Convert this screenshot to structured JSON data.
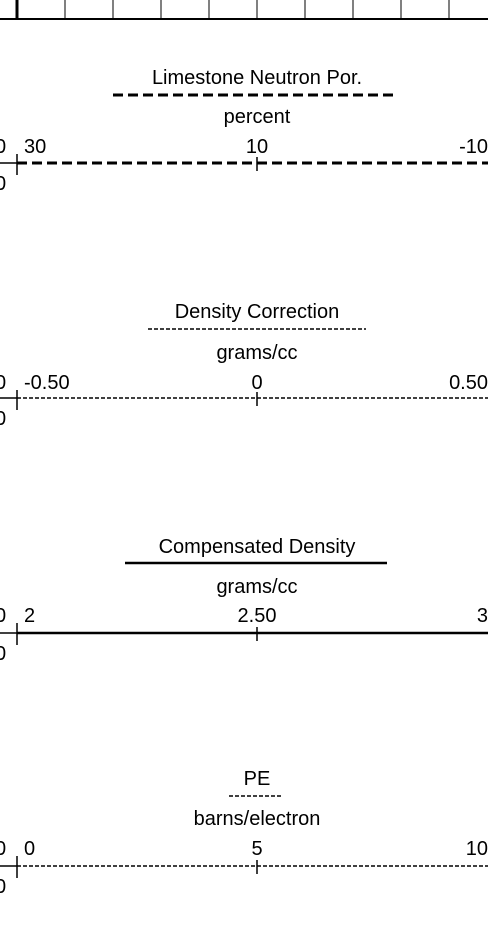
{
  "tracks": [
    {
      "title": "Limestone Neutron Por.",
      "unit": "percent",
      "scale": {
        "left": "30",
        "middle": "10",
        "right": "-10"
      },
      "edge_labels": [
        "0",
        "0"
      ]
    },
    {
      "title": "Density Correction",
      "unit": "grams/cc",
      "scale": {
        "left": "-0.50",
        "middle": "0",
        "right": "0.50"
      },
      "edge_labels": [
        "0",
        "0"
      ]
    },
    {
      "title": "Compensated Density",
      "unit": "grams/cc",
      "scale": {
        "left": "2",
        "middle": "2.50",
        "right": "3"
      },
      "edge_labels": [
        "0",
        "0"
      ]
    },
    {
      "title": "PE",
      "unit": "barns/electron",
      "scale": {
        "left": "0",
        "middle": "5",
        "right": "10"
      },
      "edge_labels": [
        "0",
        "0"
      ]
    }
  ]
}
